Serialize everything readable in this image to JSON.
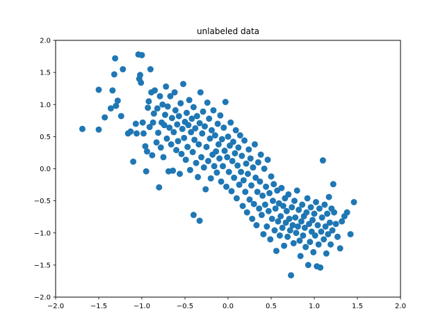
{
  "chart_data": {
    "type": "scatter",
    "title": "unlabeled data",
    "xlabel": "",
    "ylabel": "",
    "xlim": [
      -2.0,
      2.0
    ],
    "ylim": [
      -2.0,
      2.0
    ],
    "x_ticks": [
      "−2.0",
      "−1.5",
      "−1.0",
      "−0.5",
      "0.0",
      "0.5",
      "1.0",
      "1.5",
      "2.0"
    ],
    "y_ticks": [
      "−2.0",
      "−1.5",
      "−1.0",
      "−0.5",
      "0.0",
      "0.5",
      "1.0",
      "1.5",
      "2.0"
    ],
    "grid": false,
    "legend": "none",
    "marker_color": "#1f77b4",
    "series": [
      {
        "points": [
          [
            -1.69,
            0.62
          ],
          [
            -1.5,
            0.61
          ],
          [
            -1.5,
            1.23
          ],
          [
            -1.43,
            0.8
          ],
          [
            -1.36,
            0.94
          ],
          [
            -1.34,
            1.22
          ],
          [
            -1.32,
            1.47
          ],
          [
            -1.31,
            1.72
          ],
          [
            -1.3,
            0.98
          ],
          [
            -1.28,
            1.06
          ],
          [
            -1.24,
            0.82
          ],
          [
            -1.22,
            1.55
          ],
          [
            -1.16,
            0.55
          ],
          [
            -1.13,
            0.58
          ],
          [
            -1.1,
            0.11
          ],
          [
            -1.07,
            0.7
          ],
          [
            -1.06,
            0.55
          ],
          [
            -1.04,
            1.78
          ],
          [
            -1.03,
            1.4
          ],
          [
            -1.02,
            1.46
          ],
          [
            -1.01,
            1.34
          ],
          [
            -1.0,
            1.77
          ],
          [
            -0.99,
            0.72
          ],
          [
            -0.98,
            0.55
          ],
          [
            -0.96,
            0.35
          ],
          [
            -0.95,
            -0.04
          ],
          [
            -0.94,
            0.27
          ],
          [
            -0.93,
            0.95
          ],
          [
            -0.92,
            1.05
          ],
          [
            -0.91,
            0.65
          ],
          [
            -0.9,
            1.55
          ],
          [
            -0.89,
            1.19
          ],
          [
            -0.88,
            0.21
          ],
          [
            -0.87,
            0.72
          ],
          [
            -0.86,
            0.86
          ],
          [
            -0.85,
            1.22
          ],
          [
            -0.83,
            0.41
          ],
          [
            -0.82,
            0.94
          ],
          [
            -0.81,
            0.56
          ],
          [
            -0.8,
            -0.29
          ],
          [
            -0.79,
            1.13
          ],
          [
            -0.78,
            0.33
          ],
          [
            -0.77,
            0.72
          ],
          [
            -0.76,
            1.0
          ],
          [
            -0.75,
            0.18
          ],
          [
            -0.74,
            0.68
          ],
          [
            -0.73,
            0.84
          ],
          [
            -0.72,
            1.28
          ],
          [
            -0.71,
            0.47
          ],
          [
            -0.7,
            0.97
          ],
          [
            -0.69,
            -0.04
          ],
          [
            -0.68,
            0.64
          ],
          [
            -0.67,
            1.13
          ],
          [
            -0.66,
            0.38
          ],
          [
            -0.65,
            0.79
          ],
          [
            -0.64,
            -0.03
          ],
          [
            -0.63,
            0.57
          ],
          [
            -0.62,
            1.19
          ],
          [
            -0.61,
            0.91
          ],
          [
            -0.6,
            0.29
          ],
          [
            -0.59,
            0.69
          ],
          [
            -0.58,
            0.43
          ],
          [
            -0.57,
            0.82
          ],
          [
            -0.56,
            -0.08
          ],
          [
            -0.55,
            1.02
          ],
          [
            -0.54,
            0.23
          ],
          [
            -0.53,
            0.62
          ],
          [
            -0.52,
            1.32
          ],
          [
            -0.51,
            0.48
          ],
          [
            -0.5,
            0.73
          ],
          [
            -0.49,
            0.14
          ],
          [
            -0.48,
            0.87
          ],
          [
            -0.47,
            0.34
          ],
          [
            -0.46,
            0.68
          ],
          [
            -0.45,
            1.07
          ],
          [
            -0.44,
            -0.02
          ],
          [
            -0.43,
            0.57
          ],
          [
            -0.42,
            0.78
          ],
          [
            -0.41,
            0.26
          ],
          [
            -0.4,
            0.96
          ],
          [
            -0.4,
            -0.72
          ],
          [
            -0.39,
            0.45
          ],
          [
            -0.38,
            0.63
          ],
          [
            -0.37,
            0.09
          ],
          [
            -0.36,
            0.82
          ],
          [
            -0.35,
            -0.13
          ],
          [
            -0.34,
            0.38
          ],
          [
            -0.33,
            0.71
          ],
          [
            -0.33,
            -0.81
          ],
          [
            -0.32,
            1.19
          ],
          [
            -0.31,
            0.18
          ],
          [
            -0.3,
            0.55
          ],
          [
            -0.29,
            0.89
          ],
          [
            -0.28,
            0.02
          ],
          [
            -0.27,
            0.66
          ],
          [
            -0.26,
            -0.32
          ],
          [
            -0.25,
            0.34
          ],
          [
            -0.24,
            1.03
          ],
          [
            -0.23,
            0.12
          ],
          [
            -0.22,
            0.78
          ],
          [
            -0.21,
            0.47
          ],
          [
            -0.2,
            -0.15
          ],
          [
            -0.19,
            0.6
          ],
          [
            -0.18,
            0.22
          ],
          [
            -0.17,
            0.91
          ],
          [
            -0.16,
            0.04
          ],
          [
            -0.15,
            0.52
          ],
          [
            -0.14,
            0.27
          ],
          [
            -0.13,
            -0.06
          ],
          [
            -0.12,
            0.7
          ],
          [
            -0.11,
            0.38
          ],
          [
            -0.1,
            0.16
          ],
          [
            -0.09,
            0.83
          ],
          [
            -0.08,
            -0.2
          ],
          [
            -0.07,
            0.46
          ],
          [
            -0.06,
            0.04
          ],
          [
            -0.05,
            0.64
          ],
          [
            -0.04,
            0.28
          ],
          [
            -0.03,
            1.04
          ],
          [
            -0.02,
            -0.28
          ],
          [
            -0.01,
            0.18
          ],
          [
            0.0,
            0.5
          ],
          [
            0.01,
            -0.05
          ],
          [
            0.02,
            0.36
          ],
          [
            0.03,
            0.72
          ],
          [
            0.04,
            -0.35
          ],
          [
            0.05,
            0.12
          ],
          [
            0.06,
            0.42
          ],
          [
            0.07,
            -0.14
          ],
          [
            0.08,
            0.24
          ],
          [
            0.09,
            0.6
          ],
          [
            0.1,
            -0.46
          ],
          [
            0.11,
            0.05
          ],
          [
            0.12,
            0.33
          ],
          [
            0.13,
            -0.25
          ],
          [
            0.14,
            0.52
          ],
          [
            0.15,
            -0.05
          ],
          [
            0.16,
            0.2
          ],
          [
            0.17,
            -0.58
          ],
          [
            0.18,
            -0.18
          ],
          [
            0.19,
            0.44
          ],
          [
            0.2,
            -0.36
          ],
          [
            0.21,
            0.08
          ],
          [
            0.22,
            -0.68
          ],
          [
            0.23,
            -0.08
          ],
          [
            0.24,
            0.3
          ],
          [
            0.25,
            -0.48
          ],
          [
            0.26,
            0.16
          ],
          [
            0.27,
            -0.26
          ],
          [
            0.28,
            -0.78
          ],
          [
            0.29,
            0.02
          ],
          [
            0.3,
            -0.55
          ],
          [
            0.31,
            0.38
          ],
          [
            0.32,
            -0.14
          ],
          [
            0.33,
            -0.88
          ],
          [
            0.34,
            -0.36
          ],
          [
            0.35,
            0.1
          ],
          [
            0.36,
            -0.62
          ],
          [
            0.37,
            -0.2
          ],
          [
            0.38,
            0.22
          ],
          [
            0.39,
            -0.72
          ],
          [
            0.4,
            -0.42
          ],
          [
            0.41,
            -1.02
          ],
          [
            0.42,
            0.0
          ],
          [
            0.43,
            -0.56
          ],
          [
            0.44,
            -0.28
          ],
          [
            0.45,
            -0.9
          ],
          [
            0.46,
            0.14
          ],
          [
            0.47,
            -0.66
          ],
          [
            0.48,
            -0.38
          ],
          [
            0.49,
            -1.1
          ],
          [
            0.5,
            -0.12
          ],
          [
            0.51,
            -0.78
          ],
          [
            0.52,
            -0.5
          ],
          [
            0.53,
            -0.24
          ],
          [
            0.54,
            -0.96
          ],
          [
            0.55,
            -0.62
          ],
          [
            0.56,
            -1.28
          ],
          [
            0.57,
            -0.34
          ],
          [
            0.58,
            -0.82
          ],
          [
            0.59,
            -0.54
          ],
          [
            0.6,
            -1.04
          ],
          [
            0.61,
            -0.74
          ],
          [
            0.62,
            -0.3
          ],
          [
            0.63,
            -0.92
          ],
          [
            0.64,
            -0.58
          ],
          [
            0.65,
            -1.2
          ],
          [
            0.66,
            -0.46
          ],
          [
            0.67,
            -0.84
          ],
          [
            0.68,
            -0.66
          ],
          [
            0.69,
            -1.06
          ],
          [
            0.7,
            -0.4
          ],
          [
            0.71,
            -0.78
          ],
          [
            0.72,
            -0.96
          ],
          [
            0.73,
            -1.66
          ],
          [
            0.74,
            -0.6
          ],
          [
            0.75,
            -0.88
          ],
          [
            0.76,
            -1.16
          ],
          [
            0.77,
            -0.5
          ],
          [
            0.78,
            -0.76
          ],
          [
            0.79,
            -1.0
          ],
          [
            0.8,
            -0.34
          ],
          [
            0.81,
            -0.9
          ],
          [
            0.82,
            -0.64
          ],
          [
            0.83,
            -1.12
          ],
          [
            0.84,
            -1.36
          ],
          [
            0.85,
            -0.82
          ],
          [
            0.86,
            -0.56
          ],
          [
            0.87,
            -1.04
          ],
          [
            0.88,
            -0.74
          ],
          [
            0.89,
            -0.92
          ],
          [
            0.9,
            -1.22
          ],
          [
            0.91,
            -0.68
          ],
          [
            0.92,
            -0.46
          ],
          [
            0.93,
            -1.5
          ],
          [
            0.94,
            -0.86
          ],
          [
            0.95,
            -1.14
          ],
          [
            0.96,
            -0.6
          ],
          [
            0.97,
            -0.98
          ],
          [
            0.98,
            -0.8
          ],
          [
            0.99,
            -1.3
          ],
          [
            1.0,
            -0.7
          ],
          [
            1.01,
            -1.04
          ],
          [
            1.02,
            -0.52
          ],
          [
            1.03,
            -1.52
          ],
          [
            1.04,
            -0.88
          ],
          [
            1.05,
            -1.18
          ],
          [
            1.06,
            -0.62
          ],
          [
            1.07,
            -1.54
          ],
          [
            1.08,
            -0.98
          ],
          [
            1.09,
            -0.76
          ],
          [
            1.1,
            0.13
          ],
          [
            1.11,
            -1.1
          ],
          [
            1.12,
            -0.56
          ],
          [
            1.13,
            -0.9
          ],
          [
            1.14,
            -1.32
          ],
          [
            1.15,
            -0.7
          ],
          [
            1.16,
            -1.02
          ],
          [
            1.17,
            -0.44
          ],
          [
            1.18,
            -0.84
          ],
          [
            1.19,
            -1.18
          ],
          [
            1.2,
            -0.62
          ],
          [
            1.21,
            -0.96
          ],
          [
            1.22,
            -0.24
          ],
          [
            1.23,
            -0.68
          ],
          [
            1.25,
            -0.86
          ],
          [
            1.27,
            -1.06
          ],
          [
            1.3,
            -1.24
          ],
          [
            1.32,
            -0.82
          ],
          [
            1.35,
            -0.74
          ],
          [
            1.38,
            -0.68
          ],
          [
            1.42,
            -1.02
          ],
          [
            1.46,
            -0.52
          ]
        ]
      }
    ]
  }
}
